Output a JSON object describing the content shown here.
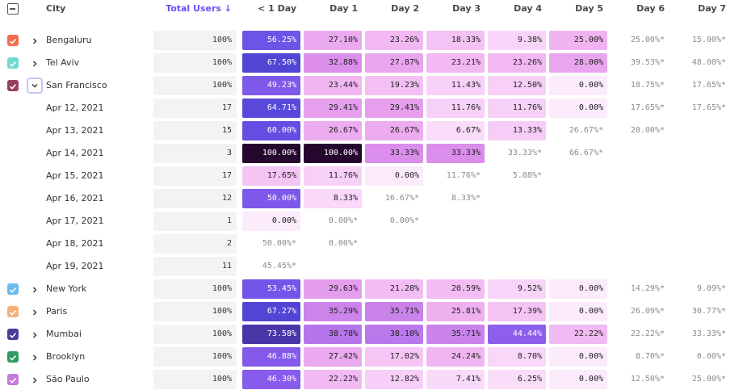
{
  "header": {
    "columns": [
      "City",
      "Total Users ↓",
      "< 1 Day",
      "Day 1",
      "Day 2",
      "Day 3",
      "Day 4",
      "Day 5",
      "Day 6",
      "Day 7"
    ]
  },
  "rows": [
    {
      "label": "Bengaluru",
      "color": "#f26d4f",
      "expanded": false,
      "cells": [
        "100%",
        "56.25%",
        "27.10%",
        "23.26%",
        "18.33%",
        "9.38%",
        "25.00%",
        "25.00%*",
        "15.00%*"
      ]
    },
    {
      "label": "Tel Aviv",
      "color": "#72d9d2",
      "expanded": false,
      "cells": [
        "100%",
        "67.50%",
        "32.88%",
        "27.87%",
        "23.21%",
        "23.26%",
        "28.00%",
        "39.53%*",
        "48.00%*"
      ]
    },
    {
      "label": "San Francisco",
      "color": "#9b3f5f",
      "expanded": true,
      "cells": [
        "100%",
        "49.23%",
        "23.44%",
        "19.23%",
        "11.43%",
        "12.50%",
        "0.00%",
        "18.75%*",
        "17.65%*"
      ]
    },
    {
      "label": "Apr 12, 2021",
      "cells": [
        "17",
        "64.71%",
        "29.41%",
        "29.41%",
        "11.76%",
        "11.76%",
        "0.00%",
        "17.65%*",
        "17.65%*"
      ]
    },
    {
      "label": "Apr 13, 2021",
      "cells": [
        "15",
        "60.00%",
        "26.67%",
        "26.67%",
        "6.67%",
        "13.33%",
        "26.67%*",
        "20.00%*"
      ]
    },
    {
      "label": "Apr 14, 2021",
      "cells": [
        "3",
        "100.00%",
        "100.00%",
        "33.33%",
        "33.33%",
        "33.33%*",
        "66.67%*"
      ]
    },
    {
      "label": "Apr 15, 2021",
      "cells": [
        "17",
        "17.65%",
        "11.76%",
        "0.00%",
        "11.76%*",
        "5.88%*"
      ]
    },
    {
      "label": "Apr 16, 2021",
      "cells": [
        "12",
        "50.00%",
        "8.33%",
        "16.67%*",
        "8.33%*"
      ]
    },
    {
      "label": "Apr 17, 2021",
      "cells": [
        "1",
        "0.00%",
        "0.00%*",
        "0.00%*"
      ]
    },
    {
      "label": "Apr 18, 2021",
      "cells": [
        "2",
        "50.00%*",
        "0.00%*"
      ]
    },
    {
      "label": "Apr 19, 2021",
      "cells": [
        "11",
        "45.45%*"
      ]
    },
    {
      "label": "New York",
      "color": "#6cb9ef",
      "expanded": false,
      "cells": [
        "100%",
        "53.45%",
        "29.63%",
        "21.28%",
        "20.59%",
        "9.52%",
        "0.00%",
        "14.29%*",
        "9.09%*"
      ]
    },
    {
      "label": "Paris",
      "color": "#f8b07a",
      "expanded": false,
      "cells": [
        "100%",
        "67.27%",
        "35.29%",
        "35.71%",
        "25.81%",
        "17.39%",
        "0.00%",
        "26.09%*",
        "30.77%*"
      ]
    },
    {
      "label": "Mumbai",
      "color": "#4b3b9c",
      "expanded": false,
      "cells": [
        "100%",
        "73.58%",
        "38.78%",
        "38.10%",
        "35.71%",
        "44.44%",
        "22.22%",
        "22.22%*",
        "33.33%*"
      ]
    },
    {
      "label": "Brooklyn",
      "color": "#2f9a63",
      "expanded": false,
      "cells": [
        "100%",
        "46.88%",
        "27.42%",
        "17.02%",
        "24.24%",
        "8.70%",
        "0.00%",
        "8.70%*",
        "0.00%*"
      ]
    },
    {
      "label": "São Paulo",
      "color": "#c57bd8",
      "expanded": false,
      "cells": [
        "100%",
        "46.30%",
        "22.22%",
        "12.82%",
        "7.41%",
        "6.25%",
        "0.00%",
        "12.50%*",
        "25.00%*"
      ]
    }
  ]
}
